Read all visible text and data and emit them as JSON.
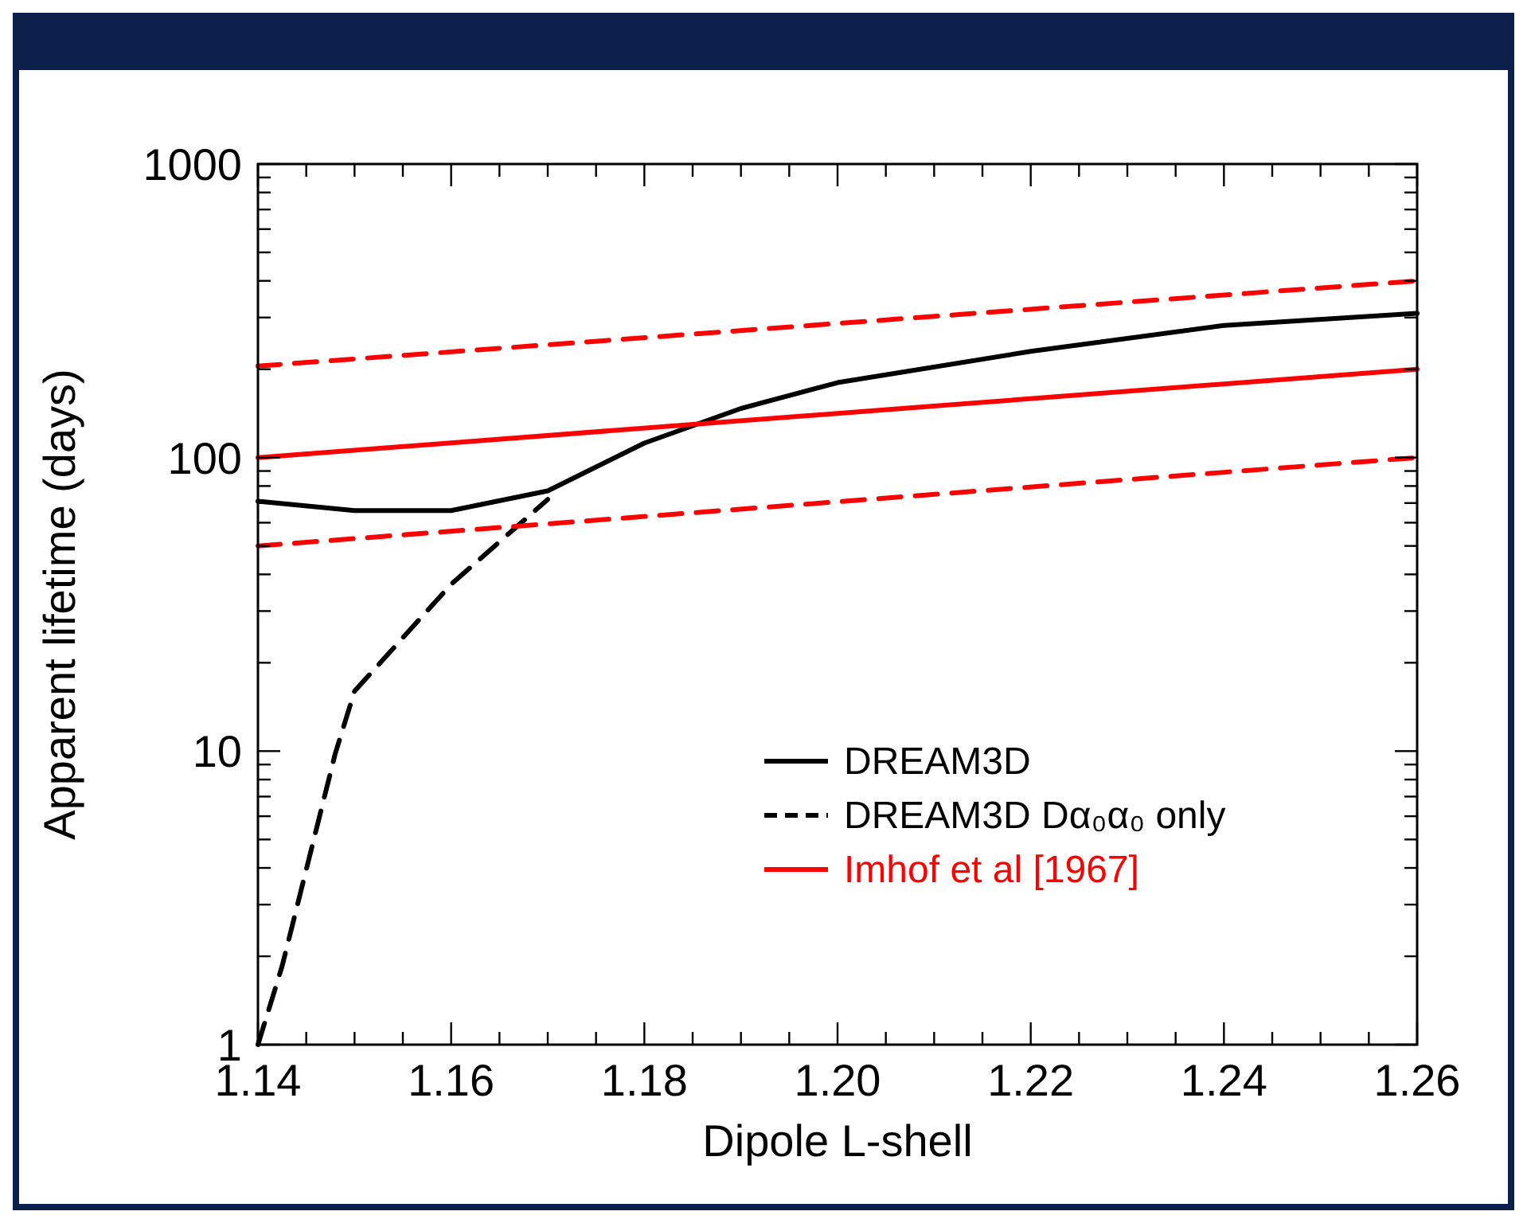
{
  "chart_data": {
    "type": "line",
    "xlabel": "Dipole L-shell",
    "ylabel": "Apparent lifetime (days)",
    "log": "y",
    "legend": "bottom right",
    "xlim": [
      1.14,
      1.26
    ],
    "ylim": [
      1,
      1000
    ],
    "xticks": [
      {
        "value": 1.14,
        "label": "1.14"
      },
      {
        "value": 1.145,
        "label": null
      },
      {
        "value": 1.15,
        "label": null
      },
      {
        "value": 1.155,
        "label": null
      },
      {
        "value": 1.16,
        "label": "1.16"
      },
      {
        "value": 1.165,
        "label": null
      },
      {
        "value": 1.17,
        "label": null
      },
      {
        "value": 1.175,
        "label": null
      },
      {
        "value": 1.18,
        "label": "1.18"
      },
      {
        "value": 1.185,
        "label": null
      },
      {
        "value": 1.19,
        "label": null
      },
      {
        "value": 1.195,
        "label": null
      },
      {
        "value": 1.2,
        "label": "1.20"
      },
      {
        "value": 1.205,
        "label": null
      },
      {
        "value": 1.21,
        "label": null
      },
      {
        "value": 1.215,
        "label": null
      },
      {
        "value": 1.22,
        "label": "1.22"
      },
      {
        "value": 1.225,
        "label": null
      },
      {
        "value": 1.23,
        "label": null
      },
      {
        "value": 1.235,
        "label": null
      },
      {
        "value": 1.24,
        "label": "1.24"
      },
      {
        "value": 1.245,
        "label": null
      },
      {
        "value": 1.25,
        "label": null
      },
      {
        "value": 1.255,
        "label": null
      },
      {
        "value": 1.26,
        "label": "1.26"
      }
    ],
    "yticks": [
      1,
      {
        "value": 2,
        "label": null
      },
      {
        "value": 3,
        "label": null
      },
      {
        "value": 4,
        "label": null
      },
      {
        "value": 5,
        "label": null
      },
      {
        "value": 6,
        "label": null
      },
      {
        "value": 7,
        "label": null
      },
      {
        "value": 8,
        "label": null
      },
      {
        "value": 9,
        "label": null
      },
      10,
      {
        "value": 20,
        "label": null
      },
      {
        "value": 30,
        "label": null
      },
      {
        "value": 40,
        "label": null
      },
      {
        "value": 50,
        "label": null
      },
      {
        "value": 60,
        "label": null
      },
      {
        "value": 70,
        "label": null
      },
      {
        "value": 80,
        "label": null
      },
      {
        "value": 90,
        "label": null
      },
      100,
      {
        "value": 200,
        "label": null
      },
      {
        "value": 300,
        "label": null
      },
      {
        "value": 400,
        "label": null
      },
      {
        "value": 500,
        "label": null
      },
      {
        "value": 600,
        "label": null
      },
      {
        "value": 700,
        "label": null
      },
      {
        "value": 800,
        "label": null
      },
      {
        "value": 900,
        "label": null
      },
      1000
    ],
    "series": [
      {
        "name": "DREAM3D",
        "color": "#000000",
        "line_style": "solid",
        "x": [
          1.14,
          1.15,
          1.16,
          1.17,
          1.18,
          1.19,
          1.2,
          1.22,
          1.24,
          1.26
        ],
        "values": [
          71,
          66,
          66,
          77,
          112,
          147,
          180,
          230,
          282,
          310
        ]
      },
      {
        "name": "DREAM3D Dα₀α₀ only",
        "color": "#000000",
        "line_style": "dashed",
        "x": [
          1.14,
          1.1425,
          1.148,
          1.15,
          1.16,
          1.17
        ],
        "values": [
          1,
          1.85,
          9.8,
          16,
          37,
          72
        ]
      },
      {
        "name": "Imhof et al [1967]",
        "color": "#ff0000",
        "line_style": "solid",
        "x": [
          1.14,
          1.26
        ],
        "values": [
          100,
          200
        ]
      },
      {
        "color": "#ff0000",
        "line_style": "dashed",
        "x": [
          1.14,
          1.26
        ],
        "values": [
          205,
          400
        ]
      },
      {
        "color": "#ff0000",
        "line_style": "dashed",
        "x": [
          1.14,
          1.26
        ],
        "values": [
          50,
          100
        ]
      }
    ]
  }
}
